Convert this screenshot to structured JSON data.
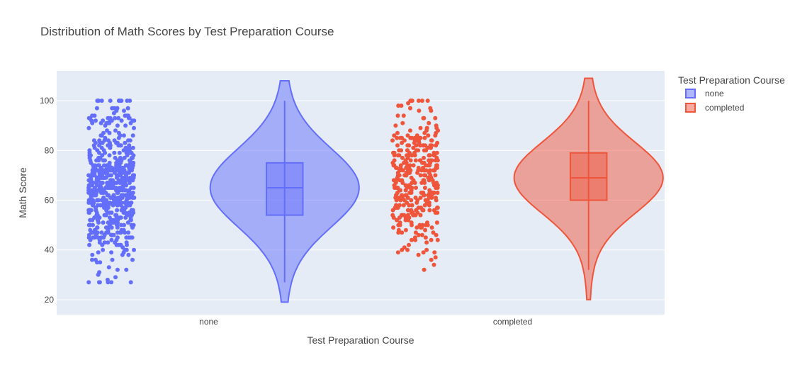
{
  "chart_data": {
    "type": "violin",
    "title": "Distribution of Math Scores by Test Preparation Course",
    "xlabel": "Test Preparation Course",
    "ylabel": "Math Score",
    "categories": [
      "none",
      "completed"
    ],
    "ylim": [
      14,
      112
    ],
    "yticks": [
      20,
      40,
      60,
      80,
      100
    ],
    "grid": true,
    "legend": {
      "title": "Test Preparation Course",
      "position": "top-right"
    },
    "points": "all",
    "series": [
      {
        "name": "none",
        "color": "#636efa",
        "stats": {
          "min": 27,
          "q1": 54,
          "median": 65,
          "q3": 75,
          "max": 100,
          "kde_min": 19,
          "kde_max": 108
        },
        "n_points": 642,
        "point_range": [
          27,
          100
        ]
      },
      {
        "name": "completed",
        "color": "#ef553b",
        "stats": {
          "min": 32,
          "q1": 60,
          "median": 69,
          "q3": 79,
          "max": 100,
          "kde_min": 20,
          "kde_max": 109
        },
        "n_points": 358,
        "point_range": [
          29,
          100
        ]
      }
    ]
  }
}
